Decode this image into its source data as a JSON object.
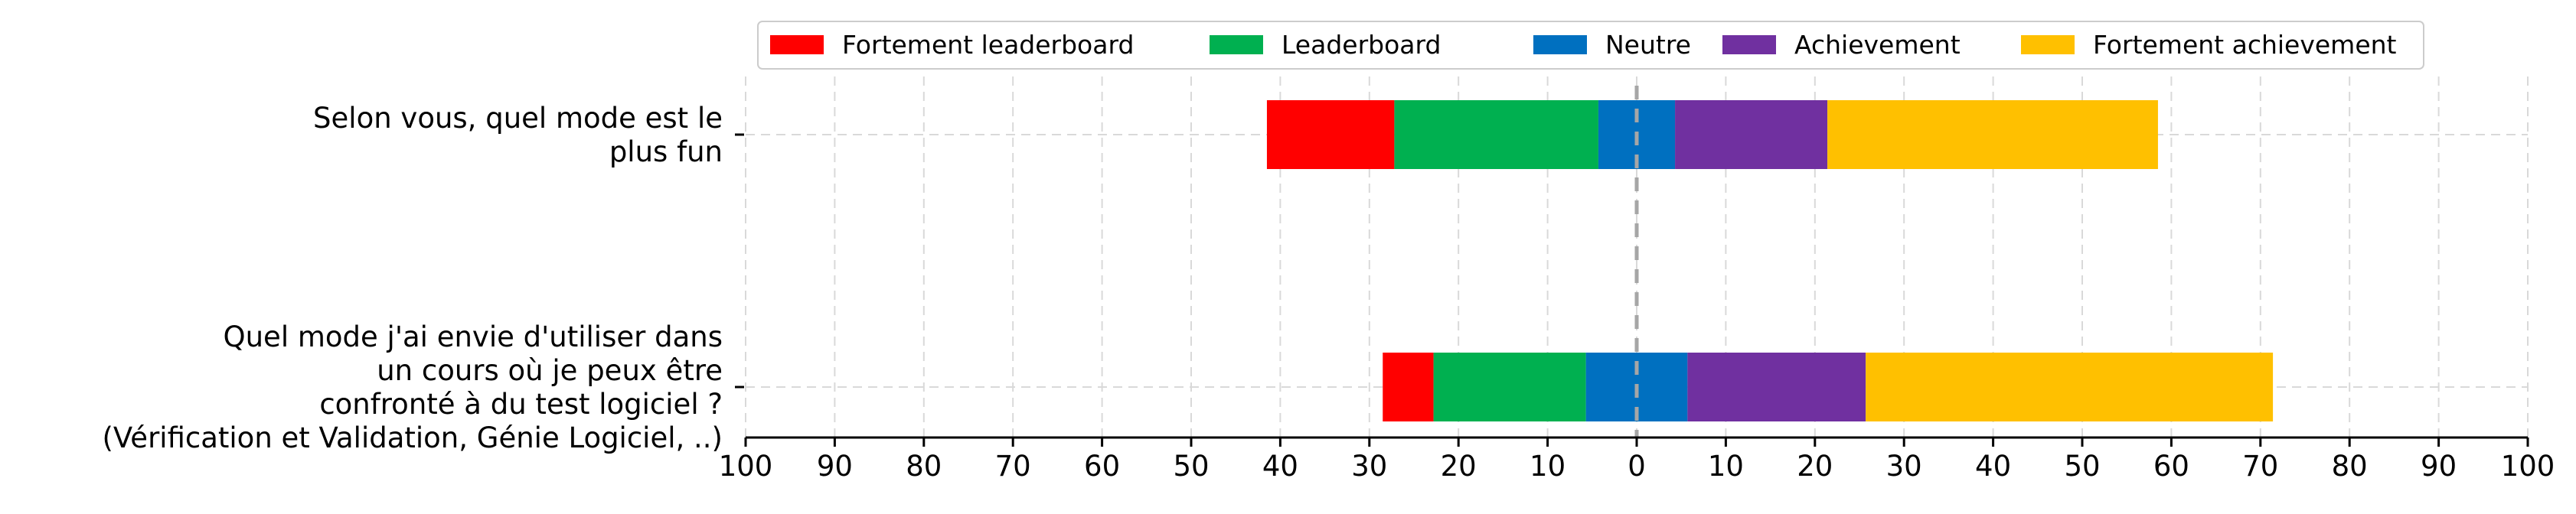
{
  "chart_data": {
    "type": "bar",
    "orientation": "horizontal-diverging-stacked",
    "xlim": [
      -100,
      100
    ],
    "xticks": [
      -100,
      -90,
      -80,
      -70,
      -60,
      -50,
      -40,
      -30,
      -20,
      -10,
      0,
      10,
      20,
      30,
      40,
      50,
      60,
      70,
      80,
      90,
      100
    ],
    "xtick_labels": [
      "100",
      "90",
      "80",
      "70",
      "60",
      "50",
      "40",
      "30",
      "20",
      "10",
      "0",
      "10",
      "20",
      "30",
      "40",
      "50",
      "60",
      "70",
      "80",
      "90",
      "100"
    ],
    "grid": true,
    "legend_position": "top-center",
    "center_line": 0,
    "categories": [
      {
        "label_lines": [
          "Selon vous, quel mode est le",
          "plus fun"
        ]
      },
      {
        "label_lines": [
          "Quel mode j'ai envie d'utiliser dans",
          "un cours où je peux être",
          "confronté à du test logiciel ?",
          "(Vérification et Validation, Génie Logiciel, ..)"
        ]
      }
    ],
    "series": [
      {
        "name": "Fortement leaderboard",
        "color": "#ff0000",
        "values": [
          14.3,
          5.7
        ]
      },
      {
        "name": "Leaderboard",
        "color": "#00b050",
        "values": [
          22.9,
          17.1
        ]
      },
      {
        "name": "Neutre",
        "color": "#0070c0",
        "values": [
          8.6,
          11.4
        ]
      },
      {
        "name": "Achievement",
        "color": "#7030a0",
        "values": [
          17.1,
          20.0
        ]
      },
      {
        "name": "Fortement achievement",
        "color": "#ffc000",
        "values": [
          37.1,
          45.7
        ]
      }
    ]
  }
}
